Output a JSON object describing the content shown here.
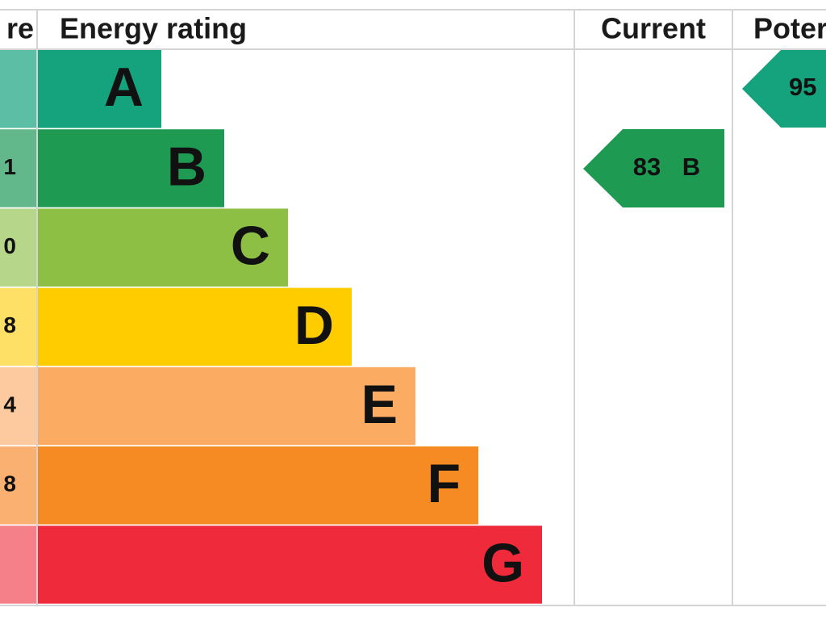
{
  "header": {
    "score": "re",
    "rating": "Energy rating",
    "current": "Current",
    "potential": "Poter"
  },
  "bands": [
    {
      "letter": "A"
    },
    {
      "letter": "B",
      "score": "1"
    },
    {
      "letter": "C",
      "score": "0"
    },
    {
      "letter": "D",
      "score": "8"
    },
    {
      "letter": "E",
      "score": "4"
    },
    {
      "letter": "F",
      "score": "8"
    },
    {
      "letter": "G"
    }
  ],
  "current": {
    "value": "83",
    "letter": "B"
  },
  "potential": {
    "value": "95"
  }
}
